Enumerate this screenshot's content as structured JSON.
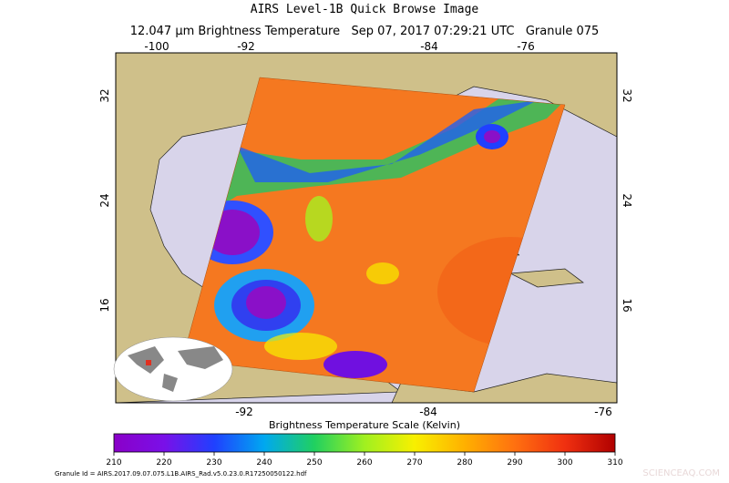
{
  "header": {
    "title": "AIRS Level-1B Quick Browse Image",
    "subtitle": "12.047 μm Brightness Temperature   Sep 07, 2017 07:29:21 UTC   Granule 075"
  },
  "map": {
    "top_lon_labels": [
      -100,
      -92,
      -84,
      -76
    ],
    "bottom_lon_labels": [
      -92,
      -84,
      -76
    ],
    "left_lat_labels": [
      32,
      24,
      16
    ],
    "right_lat_labels": [
      32,
      24,
      16
    ]
  },
  "colorbar": {
    "title": "Brightness Temperature Scale (Kelvin)",
    "ticks": [
      210,
      220,
      230,
      240,
      250,
      260,
      270,
      280,
      290,
      300,
      310
    ]
  },
  "footer": {
    "granule_id": "Granule Id = AIRS.2017.09.07.075.L1B.AIRS_Rad.v5.0.23.0.R17250050122.hdf"
  },
  "watermark": "SCIENCEAQ.COM"
}
